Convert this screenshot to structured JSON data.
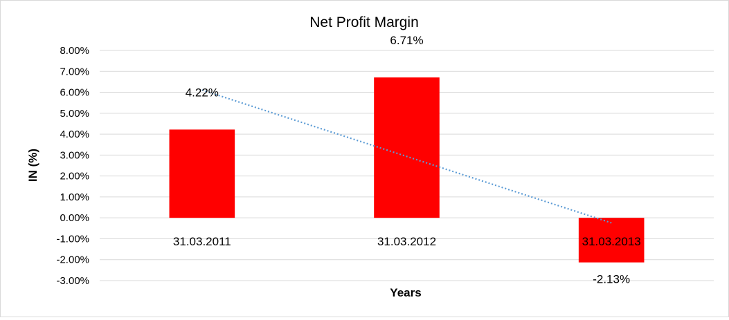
{
  "chart_data": {
    "type": "bar",
    "title": "Net Profit Margin",
    "xlabel": "Years",
    "ylabel": "IN (%)",
    "categories": [
      "31.03.2011",
      "31.03.2012",
      "31.03.2013"
    ],
    "series": [
      {
        "values": [
          4.22,
          6.71,
          -2.13
        ],
        "data_labels": [
          "4.22%",
          "6.71%",
          "-2.13%"
        ],
        "color": "#ff0000"
      }
    ],
    "trendline": {
      "type": "linear",
      "style": "dotted",
      "color": "#5b9bd5"
    },
    "ylim": [
      -3,
      8
    ],
    "yticks": [
      8,
      7,
      6,
      5,
      4,
      3,
      2,
      1,
      0,
      -1,
      -2,
      -3
    ],
    "ytick_labels": [
      "8.00%",
      "7.00%",
      "6.00%",
      "5.00%",
      "4.00%",
      "3.00%",
      "2.00%",
      "1.00%",
      "0.00%",
      "-1.00%",
      "-2.00%",
      "-3.00%"
    ],
    "grid": true,
    "legend": false
  }
}
